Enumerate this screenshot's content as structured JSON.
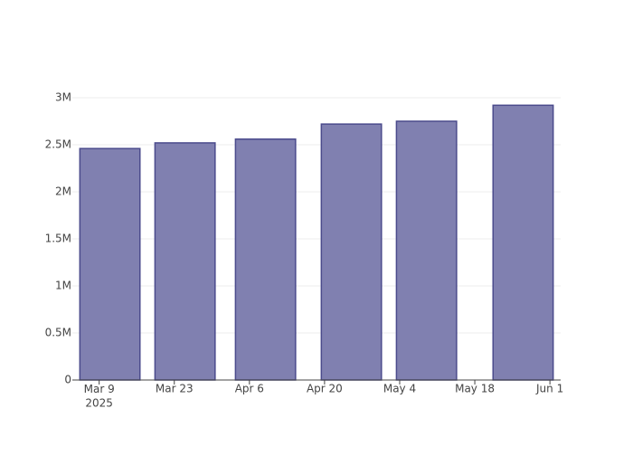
{
  "chart_data": {
    "type": "bar",
    "x": [
      "2025-03-11",
      "2025-03-25",
      "2025-04-09",
      "2025-04-25",
      "2025-05-09",
      "2025-05-27"
    ],
    "values": [
      2460000,
      2520000,
      2560000,
      2720000,
      2750000,
      2920000
    ],
    "color": "#8080b0",
    "edge_color": "#4b4b8c",
    "xlim": [
      "2025-03-04",
      "2025-06-03"
    ],
    "xticks": [
      {
        "value": "2025-03-09",
        "label": "Mar 9\n2025"
      },
      {
        "value": "2025-03-23",
        "label": "Mar 23"
      },
      {
        "value": "2025-04-06",
        "label": "Apr 6"
      },
      {
        "value": "2025-04-20",
        "label": "Apr 20"
      },
      {
        "value": "2025-05-04",
        "label": "May 4"
      },
      {
        "value": "2025-05-18",
        "label": "May 18"
      },
      {
        "value": "2025-06-01",
        "label": "Jun 1"
      }
    ],
    "ylim": [
      0,
      3077000
    ],
    "yticks": [
      0,
      {
        "value": 500000,
        "label": "0.5M"
      },
      {
        "value": 1000000,
        "label": "1M"
      },
      {
        "value": 1500000,
        "label": "1.5M"
      },
      {
        "value": 2000000,
        "label": "2M"
      },
      {
        "value": 2500000,
        "label": "2.5M"
      },
      {
        "value": 3000000,
        "label": "3M"
      }
    ],
    "grid": true
  }
}
